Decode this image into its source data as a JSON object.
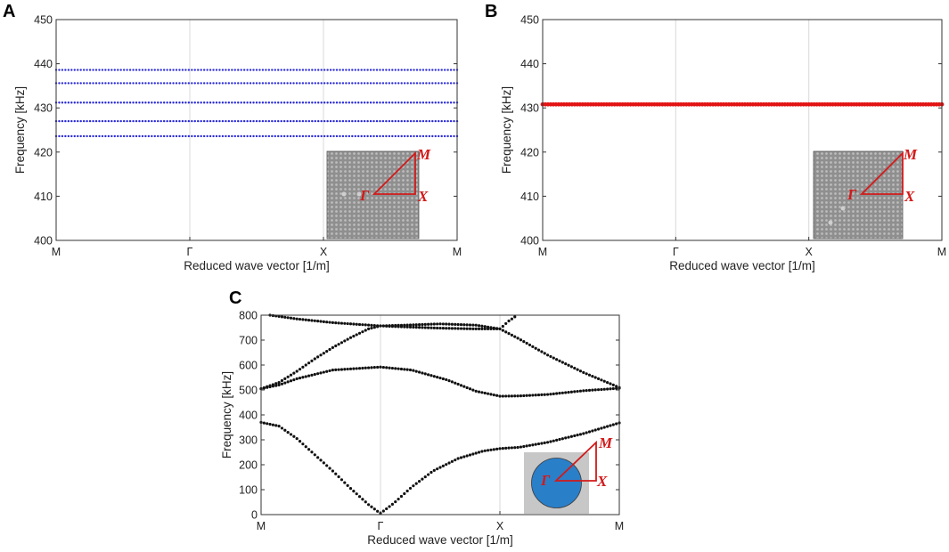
{
  "panel_letters": [
    "A",
    "B",
    "C"
  ],
  "inset_labels": {
    "gamma": "Γ",
    "m": "M",
    "x": "X"
  },
  "colors": {
    "series_a": "#2a2ad8",
    "series_b": "#e31414",
    "series_c": "#111111",
    "inset_bz": "#d21a1a",
    "inset_cylinder": "#2a7fc9",
    "inset_lattice": "#8f8f8f"
  },
  "chart_data": [
    {
      "panel": "A",
      "type": "scatter",
      "title": "",
      "xlabel": "Reduced wave vector [1/m]",
      "ylabel": "Frequency [kHz]",
      "x_ticklabels": [
        "M",
        "Γ",
        "X",
        "M"
      ],
      "y_ticks": [
        400,
        410,
        420,
        430,
        440,
        450
      ],
      "ylim": [
        400,
        450
      ],
      "grid": "vertical at high-symmetry points",
      "series": [
        {
          "name": "band 1",
          "values": [
            423.6
          ]
        },
        {
          "name": "band 2",
          "values": [
            427.0
          ]
        },
        {
          "name": "band 3",
          "values": [
            431.2
          ]
        },
        {
          "name": "band 4",
          "values": [
            435.6
          ]
        },
        {
          "name": "band 5",
          "values": [
            438.6
          ]
        }
      ],
      "inset": "square lattice with point defect and irreducible Brillouin zone Γ-X-M"
    },
    {
      "panel": "B",
      "type": "scatter",
      "title": "",
      "xlabel": "Reduced wave vector [1/m]",
      "ylabel": "Frequency [kHz]",
      "x_ticklabels": [
        "M",
        "Γ",
        "X",
        "M"
      ],
      "y_ticks": [
        400,
        410,
        420,
        430,
        440,
        450
      ],
      "ylim": [
        400,
        450
      ],
      "grid": "vertical at high-symmetry points",
      "series": [
        {
          "name": "flat band",
          "values": [
            430.8
          ]
        }
      ],
      "inset": "square lattice with point defect and irreducible Brillouin zone Γ-X-M"
    },
    {
      "panel": "C",
      "type": "scatter",
      "title": "",
      "xlabel": "Reduced wave vector [1/m]",
      "ylabel": "Frequency [kHz]",
      "x_ticklabels": [
        "M",
        "Γ",
        "X",
        "M"
      ],
      "y_ticks": [
        0,
        100,
        200,
        300,
        400,
        500,
        600,
        700,
        800
      ],
      "ylim": [
        0,
        800
      ],
      "grid": "vertical at high-symmetry points",
      "band_note": "band frequency (kHz) at path fraction t from M (0) through Γ (1/3), X (2/3), back to M (1)",
      "series": [
        {
          "name": "band 1",
          "points": [
            [
              0,
              370
            ],
            [
              0.05,
              355
            ],
            [
              0.1,
              305
            ],
            [
              0.15,
              240
            ],
            [
              0.2,
              175
            ],
            [
              0.25,
              105
            ],
            [
              0.3,
              40
            ],
            [
              0.333,
              5
            ],
            [
              0.37,
              45
            ],
            [
              0.42,
              110
            ],
            [
              0.48,
              175
            ],
            [
              0.55,
              225
            ],
            [
              0.62,
              255
            ],
            [
              0.667,
              265
            ],
            [
              0.72,
              270
            ],
            [
              0.8,
              290
            ],
            [
              0.9,
              325
            ],
            [
              1.0,
              368
            ]
          ]
        },
        {
          "name": "band 2",
          "points": [
            [
              0,
              505
            ],
            [
              0.05,
              520
            ],
            [
              0.1,
              545
            ],
            [
              0.2,
              580
            ],
            [
              0.333,
              592
            ],
            [
              0.42,
              580
            ],
            [
              0.52,
              540
            ],
            [
              0.6,
              495
            ],
            [
              0.667,
              475
            ],
            [
              0.72,
              476
            ],
            [
              0.8,
              482
            ],
            [
              0.9,
              497
            ],
            [
              1.0,
              507
            ]
          ]
        },
        {
          "name": "band 3",
          "points": [
            [
              0,
              505
            ],
            [
              0.05,
              530
            ],
            [
              0.1,
              575
            ],
            [
              0.15,
              625
            ],
            [
              0.2,
              670
            ],
            [
              0.25,
              710
            ],
            [
              0.3,
              745
            ],
            [
              0.333,
              757
            ],
            [
              0.4,
              753
            ],
            [
              0.5,
              748
            ],
            [
              0.6,
              745
            ],
            [
              0.667,
              745
            ],
            [
              0.72,
              705
            ],
            [
              0.8,
              640
            ],
            [
              0.9,
              570
            ],
            [
              1.0,
              510
            ]
          ]
        },
        {
          "name": "band 4",
          "points": [
            [
              0.025,
              800
            ],
            [
              0.05,
              795
            ],
            [
              0.1,
              785
            ],
            [
              0.2,
              770
            ],
            [
              0.333,
              757
            ],
            [
              0.4,
              760
            ],
            [
              0.5,
              765
            ],
            [
              0.6,
              760
            ],
            [
              0.667,
              745
            ],
            [
              0.69,
              775
            ],
            [
              0.715,
              800
            ]
          ]
        }
      ],
      "inset": "single cylinder unit cell with irreducible Brillouin zone Γ-X-M"
    }
  ]
}
